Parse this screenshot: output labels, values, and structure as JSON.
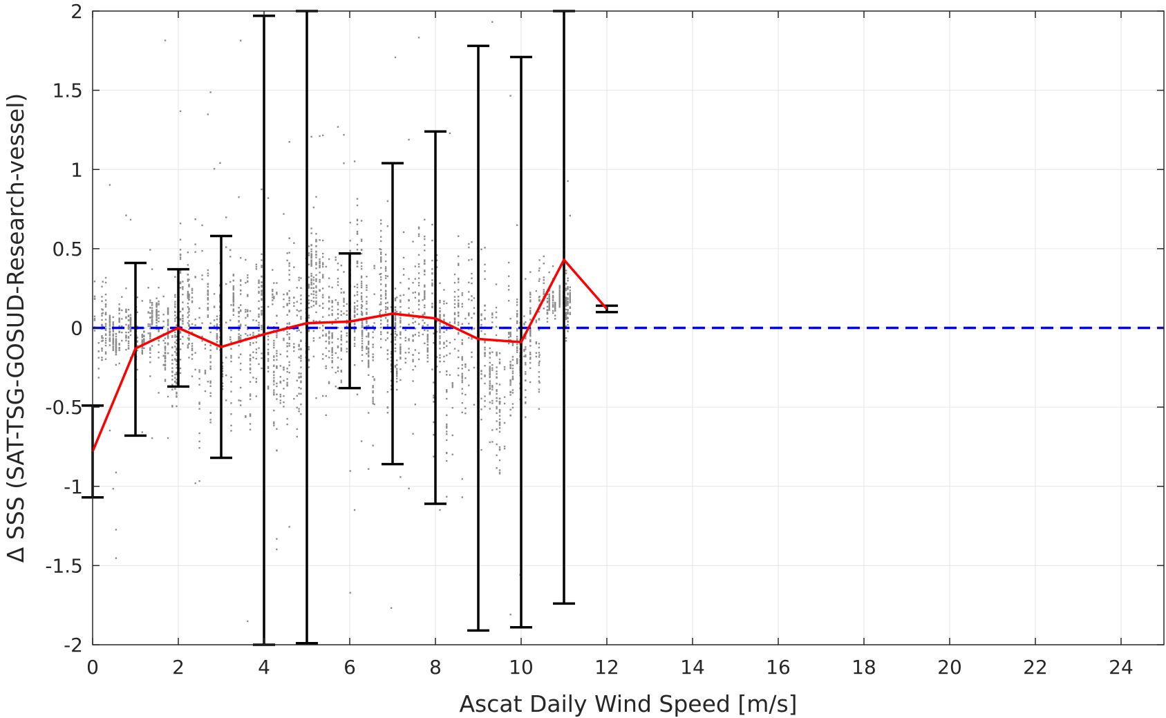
{
  "chart_data": {
    "type": "scatter",
    "title": "",
    "xlabel": "Ascat Daily Wind Speed [m/s]",
    "ylabel": "Δ SSS (SAT-TSG-GOSUD-Research-vessel)",
    "xlim": [
      0,
      25
    ],
    "ylim": [
      -2,
      2
    ],
    "xticks": [
      0,
      2,
      4,
      6,
      8,
      10,
      12,
      14,
      16,
      18,
      20,
      22,
      24
    ],
    "yticks": [
      2,
      1.5,
      1,
      0.5,
      0,
      -0.5,
      -1,
      -1.5,
      -2
    ],
    "grid": true,
    "legend": "none",
    "colors": {
      "scatter": "#8c8c8c",
      "mean_line": "#ff0000",
      "error_bars": "#000000",
      "zero_line": "#0000ff",
      "grid": "#e6e6e6",
      "axis": "#262626"
    },
    "series": [
      {
        "kind": "mean-with-error-bars",
        "x": [
          0,
          1,
          2,
          3,
          4,
          5,
          6,
          7,
          8,
          9,
          10,
          11,
          12
        ],
        "mean": [
          -0.78,
          -0.13,
          0.0,
          -0.12,
          -0.04,
          0.03,
          0.04,
          0.09,
          0.06,
          -0.07,
          -0.09,
          0.43,
          0.12
        ],
        "upper": [
          -0.49,
          0.41,
          0.37,
          0.58,
          1.97,
          2.0,
          0.47,
          1.04,
          1.24,
          1.78,
          1.71,
          2.0,
          0.14
        ],
        "lower": [
          -1.07,
          -0.68,
          -0.37,
          -0.82,
          -2.0,
          -1.99,
          -0.38,
          -0.86,
          -1.11,
          -1.91,
          -1.89,
          -1.74,
          0.1
        ]
      },
      {
        "kind": "reference-line",
        "y": 0
      },
      {
        "kind": "scatter-cloud",
        "description_bins": [
          {
            "x_range": [
              0.0,
              1.6
            ],
            "center": 0.0,
            "spread": 0.22
          },
          {
            "x_range": [
              1.6,
              3.0
            ],
            "center": -0.05,
            "spread": 0.4
          },
          {
            "x_range": [
              3.0,
              5.0
            ],
            "center": -0.02,
            "spread": 0.5
          },
          {
            "x_range": [
              5.0,
              8.0
            ],
            "center": 0.06,
            "spread": 0.45
          },
          {
            "x_range": [
              8.0,
              10.5
            ],
            "center": -0.08,
            "spread": 0.5
          },
          {
            "x_range": [
              10.5,
              11.2
            ],
            "center": 0.2,
            "spread": 0.15
          }
        ]
      }
    ]
  }
}
